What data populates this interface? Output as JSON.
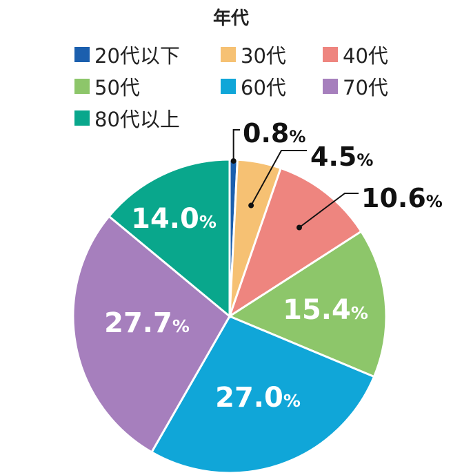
{
  "chart_data": {
    "type": "pie",
    "title": "年代",
    "legend_position": "top",
    "unit_suffix": "%",
    "slices": [
      {
        "label": "20代以下",
        "value": 0.8,
        "color": "#1b5fae",
        "label_placement": "outside"
      },
      {
        "label": "30代",
        "value": 4.5,
        "color": "#f6c173",
        "label_placement": "outside"
      },
      {
        "label": "40代",
        "value": 10.6,
        "color": "#ee857f",
        "label_placement": "outside"
      },
      {
        "label": "50代",
        "value": 15.4,
        "color": "#8dc66a",
        "label_placement": "inside"
      },
      {
        "label": "60代",
        "value": 27.0,
        "color": "#10a6d8",
        "label_placement": "inside"
      },
      {
        "label": "70代",
        "value": 27.7,
        "color": "#a67fbd",
        "label_placement": "inside"
      },
      {
        "label": "80代以上",
        "value": 14.0,
        "color": "#09a78c",
        "label_placement": "inside"
      }
    ]
  }
}
